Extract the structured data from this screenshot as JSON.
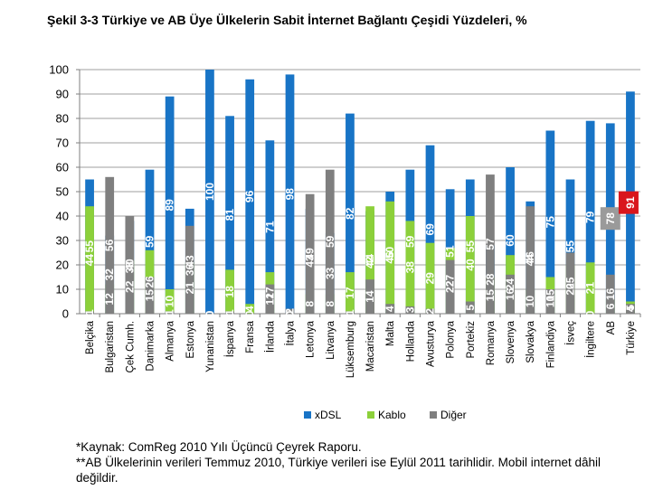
{
  "title": "Şekil 3-3 Türkiye ve AB Üye Ülkelerin Sabit İnternet Bağlantı Çeşidi Yüzdeleri, %",
  "colors": {
    "xdsl": "#1874c6",
    "kablo": "#8cd03a",
    "diger": "#7f7f7f",
    "highlight_red": "#d9161c",
    "highlight_gray": "#9a9a9a"
  },
  "chart_data": {
    "type": "bar",
    "stacked": true,
    "ylim": [
      0,
      100
    ],
    "yticks": [
      0,
      10,
      20,
      30,
      40,
      50,
      60,
      70,
      80,
      90,
      100
    ],
    "grid": true,
    "legend_position": "bottom",
    "categories": [
      "Belçika",
      "Bulgaristan",
      "Çek Cumh.",
      "Danimarka",
      "Almanya",
      "Estonya",
      "Yunanistan",
      "İspanya",
      "Fransa",
      "İrlanda",
      "İtalya",
      "Letonya",
      "Litvanya",
      "Lüksemburg",
      "Macaristan",
      "Malta",
      "Hollanda",
      "Avusturya",
      "Polonya",
      "Portekiz",
      "Romanya",
      "Slovenya",
      "Slovakya",
      "Finlandiya",
      "İsveç",
      "İngiltere",
      "AB",
      "Türkiye"
    ],
    "series": [
      {
        "name": "xDSL",
        "values": [
          55,
          32,
          38,
          59,
          89,
          43,
          100,
          81,
          96,
          71,
          98,
          43,
          33,
          82,
          42,
          50,
          59,
          69,
          51,
          55,
          28,
          60,
          46,
          75,
          55,
          79,
          78,
          91
        ]
      },
      {
        "name": "Kablo",
        "values": [
          44,
          12,
          22,
          26,
          10,
          21,
          0,
          18,
          4,
          17,
          0,
          8,
          8,
          17,
          44,
          46,
          38,
          29,
          27,
          40,
          15,
          24,
          10,
          15,
          20,
          21,
          6,
          5
        ]
      },
      {
        "name": "Diğer",
        "values": [
          1,
          56,
          40,
          15,
          1,
          36,
          0,
          1,
          0,
          12,
          2,
          49,
          59,
          1,
          14,
          4,
          3,
          2,
          22,
          5,
          57,
          16,
          44,
          10,
          25,
          0,
          16,
          4
        ]
      }
    ],
    "highlighted_labels": [
      {
        "category": "AB",
        "series": "xDSL",
        "value": 78
      },
      {
        "category": "Türkiye",
        "series": "xDSL",
        "value": 91
      }
    ]
  },
  "notes": {
    "source": "*Kaynak: ComReg 2010 Yılı Üçüncü Çeyrek Raporu.",
    "footnote": "**AB Ülkelerinin verileri Temmuz 2010, Türkiye verileri ise Eylül 2011 tarihlidir. Mobil internet dâhil değildir."
  }
}
